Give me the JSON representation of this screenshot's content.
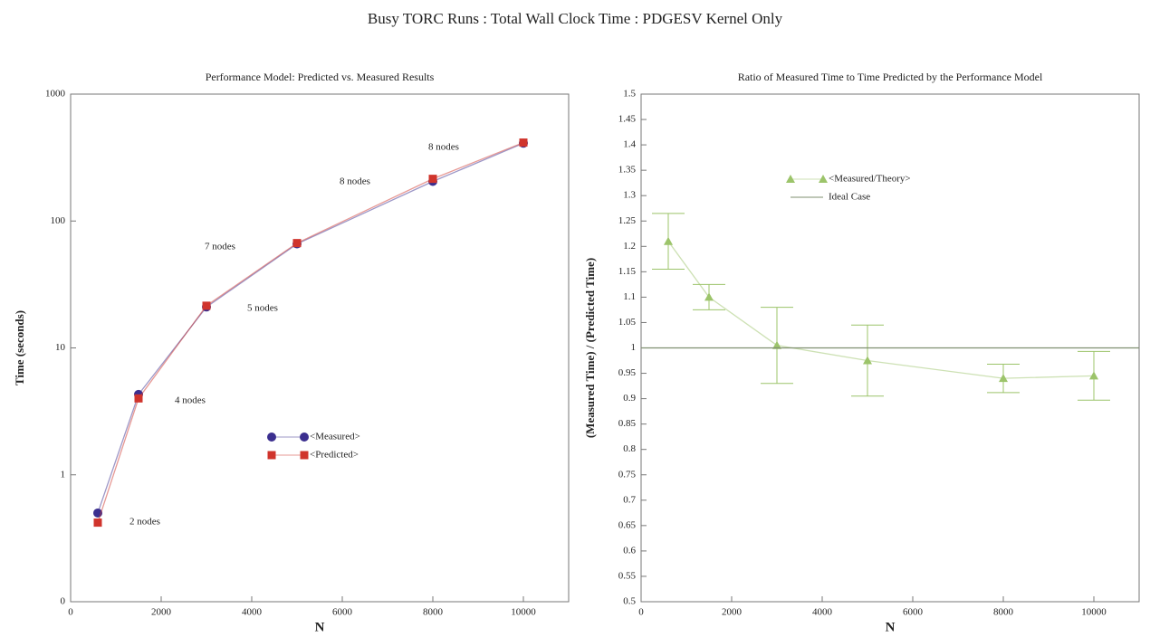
{
  "title": "Busy TORC Runs : Total Wall Clock Time : PDGESV Kernel Only",
  "chart_data": [
    {
      "type": "line",
      "title": "Performance Model: Predicted vs. Measured Results",
      "xlabel": "N",
      "ylabel": "Time (seconds)",
      "ylog": true,
      "x": [
        600,
        1500,
        3000,
        5000,
        8000,
        10000
      ],
      "series": [
        {
          "name": "<Measured>",
          "color": "#3b2f8f",
          "marker": "circle",
          "values": [
            0.5,
            4.3,
            21,
            66,
            205,
            410
          ]
        },
        {
          "name": "<Predicted>",
          "color": "#d0342c",
          "marker": "square",
          "values": [
            0.42,
            4.0,
            21.5,
            67,
            215,
            415
          ]
        }
      ],
      "xlim": [
        0,
        11000
      ],
      "xticks": [
        0,
        2000,
        4000,
        6000,
        8000,
        10000
      ],
      "ylim": [
        0.1,
        1000
      ],
      "yticks": [
        {
          "value": 0.1,
          "label": "0"
        },
        1,
        10,
        100,
        1000
      ],
      "annotations": [
        "2 nodes",
        "4 nodes",
        "5 nodes",
        "7 nodes",
        "8 nodes",
        "8 nodes"
      ]
    },
    {
      "type": "line",
      "title": "Ratio of Measured Time to Time Predicted by the Performance Model",
      "xlabel": "N",
      "ylabel": "(Measured Time) / (Predicted Time)",
      "x": [
        600,
        1500,
        3000,
        5000,
        8000,
        10000
      ],
      "series": [
        {
          "name": "<Measured/Theory>",
          "color": "#9cc46a",
          "marker": "triangle",
          "values": [
            1.21,
            1.1,
            1.005,
            0.975,
            0.94,
            0.945
          ],
          "errors": [
            0.055,
            0.025,
            0.075,
            0.07,
            0.028,
            0.048
          ]
        },
        {
          "name": "Ideal Case",
          "color": "#7f8f6f",
          "hline": 1
        }
      ],
      "xlim": [
        0,
        11000
      ],
      "xticks": [
        0,
        2000,
        4000,
        6000,
        8000,
        10000
      ],
      "ylim": [
        0.5,
        1.5
      ],
      "yticks": [
        0.5,
        0.55,
        0.6,
        0.65,
        0.7,
        0.75,
        0.8,
        0.85,
        0.9,
        0.95,
        1,
        1.05,
        1.1,
        1.15,
        1.2,
        1.25,
        1.3,
        1.35,
        1.4,
        1.45,
        1.5
      ]
    }
  ]
}
